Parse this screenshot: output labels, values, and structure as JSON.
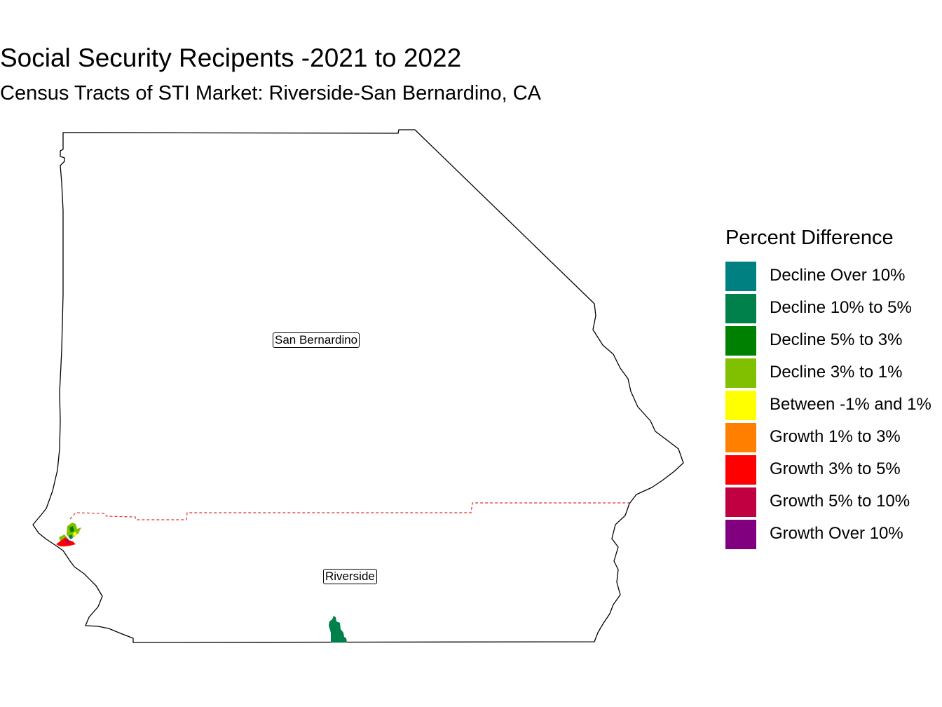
{
  "title": "Social Security Recipents -2021 to 2022",
  "subtitle": "Census Tracts of STI Market: Riverside-San Bernardino, CA",
  "map": {
    "counties": [
      {
        "name": "San Bernardino",
        "label": "San Bernardino"
      },
      {
        "name": "Riverside",
        "label": "Riverside"
      }
    ],
    "boundary_style": "dashed red line between counties"
  },
  "legend": {
    "title": "Percent Difference",
    "items": [
      {
        "label": "Decline Over 10%",
        "color": "#008080"
      },
      {
        "label": "Decline 10% to 5%",
        "color": "#00804A"
      },
      {
        "label": "Decline 5% to 3%",
        "color": "#008000"
      },
      {
        "label": "Decline 3% to 1%",
        "color": "#80C000"
      },
      {
        "label": "Between -1% and 1%",
        "color": "#FFFF00"
      },
      {
        "label": "Growth 1% to 3%",
        "color": "#FF8000"
      },
      {
        "label": "Growth 3% to 5%",
        "color": "#FF0000"
      },
      {
        "label": "Growth 5% to 10%",
        "color": "#C00040"
      },
      {
        "label": "Growth Over 10%",
        "color": "#800080"
      }
    ]
  }
}
